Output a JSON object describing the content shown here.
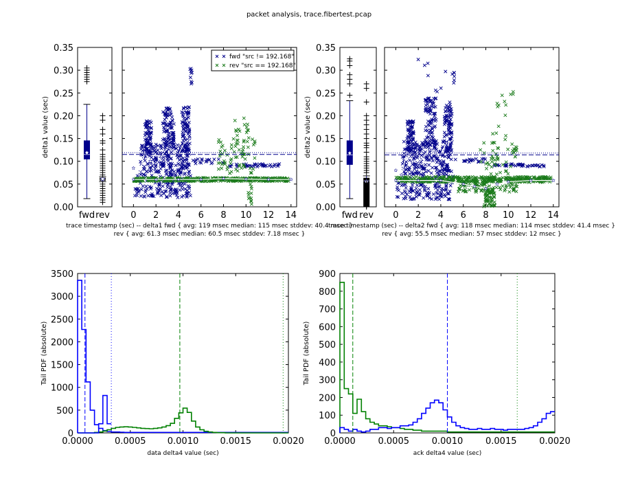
{
  "suptitle": "packet analysis, trace.fibertest.pcap",
  "colors": {
    "fwd": "#00008b",
    "rev": "#1a7a1a",
    "blue": "#0000ff",
    "green": "#008000",
    "white": "#ffffff"
  },
  "chart_data": [
    {
      "id": "p1-box",
      "type": "boxplot",
      "ylabel": "delta1 value (sec)",
      "ylim": [
        0,
        0.35
      ],
      "yticks": [
        "0.00",
        "0.05",
        "0.10",
        "0.15",
        "0.20",
        "0.25",
        "0.30",
        "0.35"
      ],
      "categories": [
        "fwd",
        "rev"
      ],
      "boxes": [
        {
          "name": "fwd",
          "q1": 0.105,
          "median": 0.115,
          "q3": 0.145,
          "whisker_low": 0.018,
          "whisker_high": 0.225,
          "mean": 0.119,
          "fliers": [
            0.275,
            0.28,
            0.285,
            0.29,
            0.295,
            0.3,
            0.305
          ]
        },
        {
          "name": "rev",
          "q1": 0.058,
          "median": 0.0605,
          "q3": 0.063,
          "whisker_low": 0.055,
          "whisker_high": 0.066,
          "mean": 0.0613,
          "fliers": [
            0.01,
            0.015,
            0.02,
            0.025,
            0.03,
            0.035,
            0.04,
            0.045,
            0.05,
            0.07,
            0.075,
            0.08,
            0.085,
            0.09,
            0.095,
            0.1,
            0.105,
            0.11,
            0.115,
            0.125,
            0.14,
            0.145,
            0.16,
            0.17,
            0.19,
            0.2
          ]
        }
      ]
    },
    {
      "id": "p1-scatter",
      "type": "scatter",
      "xlim": [
        -1,
        14.5
      ],
      "ylim": [
        0,
        0.35
      ],
      "xticks": [
        "0",
        "2",
        "4",
        "6",
        "8",
        "10",
        "12",
        "14"
      ],
      "xlabel_line1": "trace timestamp (sec) -- delta1 fwd { avg: 119 msec median: 115 msec stddev: 40.4 msec }",
      "xlabel_line2": "rev { avg: 61.3 msec median: 60.5 msec stddev: 7.18 msec }",
      "legend": [
        "fwd \"src != 192.168\"",
        "rev \"src == 192.168\""
      ],
      "fwd_avg": 0.119,
      "fwd_median": 0.115,
      "series": [
        {
          "name": "fwd",
          "clusters": [
            {
              "x0": 0.1,
              "x1": 5.1,
              "y0": 0.02,
              "y1": 0.07,
              "n": 140
            },
            {
              "x0": 0.6,
              "x1": 5.0,
              "y0": 0.07,
              "y1": 0.14,
              "n": 220
            },
            {
              "x0": 1.0,
              "x1": 1.6,
              "y0": 0.12,
              "y1": 0.19,
              "n": 60
            },
            {
              "x0": 2.6,
              "x1": 3.6,
              "y0": 0.13,
              "y1": 0.22,
              "n": 90
            },
            {
              "x0": 4.3,
              "x1": 5.0,
              "y0": 0.12,
              "y1": 0.22,
              "n": 80
            },
            {
              "x0": 5.0,
              "x1": 5.2,
              "y0": 0.27,
              "y1": 0.305,
              "n": 10
            },
            {
              "x0": 5.3,
              "x1": 8.0,
              "y0": 0.095,
              "y1": 0.105,
              "n": 20
            },
            {
              "x0": 8.5,
              "x1": 13.0,
              "y0": 0.088,
              "y1": 0.095,
              "n": 40
            }
          ],
          "trend": [
            [
              0.0,
              0.085
            ],
            [
              0.5,
              0.07
            ],
            [
              1.0,
              0.12
            ],
            [
              1.5,
              0.1
            ],
            [
              2.0,
              0.095
            ],
            [
              2.5,
              0.11
            ],
            [
              3.0,
              0.13
            ],
            [
              3.5,
              0.125
            ],
            [
              4.0,
              0.115
            ],
            [
              4.5,
              0.14
            ],
            [
              5.0,
              0.15
            ]
          ]
        },
        {
          "name": "rev",
          "clusters": [
            {
              "x0": 0.0,
              "x1": 13.8,
              "y0": 0.056,
              "y1": 0.064,
              "n": 420
            },
            {
              "x0": 7.5,
              "x1": 10.8,
              "y0": 0.07,
              "y1": 0.15,
              "n": 70
            },
            {
              "x0": 9.0,
              "x1": 10.3,
              "y0": 0.15,
              "y1": 0.2,
              "n": 14
            },
            {
              "x0": 10.2,
              "x1": 10.5,
              "y0": 0.005,
              "y1": 0.05,
              "n": 12
            }
          ],
          "trend": [
            [
              0.0,
              0.06
            ],
            [
              2.0,
              0.06
            ],
            [
              4.0,
              0.06
            ],
            [
              6.0,
              0.06
            ],
            [
              8.0,
              0.062
            ],
            [
              10.0,
              0.061
            ],
            [
              12.0,
              0.06
            ],
            [
              14.0,
              0.06
            ]
          ]
        }
      ]
    },
    {
      "id": "p2-box",
      "type": "boxplot",
      "ylabel": "delta2 value (sec)",
      "ylim": [
        0,
        0.35
      ],
      "yticks": [
        "0.00",
        "0.05",
        "0.10",
        "0.15",
        "0.20",
        "0.25",
        "0.30",
        "0.35"
      ],
      "categories": [
        "fwd",
        "rev"
      ],
      "boxes": [
        {
          "name": "fwd",
          "q1": 0.093,
          "median": 0.114,
          "q3": 0.145,
          "whisker_low": 0.018,
          "whisker_high": 0.233,
          "mean": 0.118,
          "fliers": [
            0.245,
            0.27,
            0.28,
            0.29,
            0.31,
            0.32,
            0.325
          ]
        },
        {
          "name": "rev",
          "q1": 0.0,
          "median": 0.057,
          "q3": 0.063,
          "whisker_low": 0.0,
          "whisker_high": 0.068,
          "mean": 0.0555,
          "fliers": [
            0.0,
            0.002,
            0.004,
            0.006,
            0.008,
            0.01,
            0.012,
            0.014,
            0.016,
            0.018,
            0.02,
            0.022,
            0.024,
            0.026,
            0.028,
            0.03,
            0.032,
            0.034,
            0.036,
            0.038,
            0.04,
            0.042,
            0.044,
            0.046,
            0.048,
            0.05,
            0.052,
            0.075,
            0.08,
            0.085,
            0.09,
            0.095,
            0.1,
            0.105,
            0.11,
            0.12,
            0.13,
            0.135,
            0.14,
            0.15,
            0.16,
            0.17,
            0.18,
            0.19,
            0.2,
            0.23,
            0.26,
            0.27
          ]
        }
      ]
    },
    {
      "id": "p2-scatter",
      "type": "scatter",
      "xlim": [
        -1,
        14.5
      ],
      "ylim": [
        0,
        0.35
      ],
      "xticks": [
        "0",
        "2",
        "4",
        "6",
        "8",
        "10",
        "12",
        "14"
      ],
      "xlabel_line1": "trace timestamp (sec) -- delta2 fwd { avg: 118 msec median: 114 msec stddev: 41.4 msec }",
      "xlabel_line2": "rev { avg: 55.5 msec median: 57 msec stddev: 12 msec }",
      "fwd_avg": 0.118,
      "fwd_median": 0.114,
      "series": [
        {
          "name": "fwd",
          "clusters": [
            {
              "x0": 0.1,
              "x1": 5.1,
              "y0": 0.015,
              "y1": 0.07,
              "n": 140
            },
            {
              "x0": 0.6,
              "x1": 5.0,
              "y0": 0.07,
              "y1": 0.145,
              "n": 220
            },
            {
              "x0": 1.0,
              "x1": 1.6,
              "y0": 0.12,
              "y1": 0.19,
              "n": 60
            },
            {
              "x0": 2.6,
              "x1": 3.6,
              "y0": 0.13,
              "y1": 0.24,
              "n": 90
            },
            {
              "x0": 4.3,
              "x1": 5.0,
              "y0": 0.12,
              "y1": 0.23,
              "n": 80
            },
            {
              "x0": 1.8,
              "x1": 4.5,
              "y0": 0.25,
              "y1": 0.325,
              "n": 8
            },
            {
              "x0": 5.0,
              "x1": 5.2,
              "y0": 0.27,
              "y1": 0.295,
              "n": 6
            },
            {
              "x0": 5.3,
              "x1": 8.0,
              "y0": 0.098,
              "y1": 0.106,
              "n": 20
            },
            {
              "x0": 8.5,
              "x1": 13.2,
              "y0": 0.088,
              "y1": 0.094,
              "n": 40
            }
          ],
          "trend": [
            [
              0.0,
              0.08
            ],
            [
              0.5,
              0.07
            ],
            [
              1.0,
              0.12
            ],
            [
              1.5,
              0.1
            ],
            [
              2.0,
              0.095
            ],
            [
              2.5,
              0.11
            ],
            [
              3.0,
              0.125
            ],
            [
              3.5,
              0.12
            ],
            [
              4.0,
              0.115
            ],
            [
              4.5,
              0.14
            ],
            [
              5.0,
              0.145
            ]
          ]
        },
        {
          "name": "rev",
          "clusters": [
            {
              "x0": 0.0,
              "x1": 13.8,
              "y0": 0.054,
              "y1": 0.066,
              "n": 420
            },
            {
              "x0": 5.5,
              "x1": 10.8,
              "y0": 0.03,
              "y1": 0.055,
              "n": 80
            },
            {
              "x0": 7.8,
              "x1": 8.8,
              "y0": 0.0,
              "y1": 0.04,
              "n": 60
            },
            {
              "x0": 7.5,
              "x1": 10.8,
              "y0": 0.07,
              "y1": 0.15,
              "n": 50
            },
            {
              "x0": 8.5,
              "x1": 10.5,
              "y0": 0.15,
              "y1": 0.27,
              "n": 14
            }
          ],
          "trend": [
            [
              0.0,
              0.058
            ],
            [
              2.0,
              0.058
            ],
            [
              4.0,
              0.058
            ],
            [
              6.0,
              0.05
            ],
            [
              7.0,
              0.045
            ],
            [
              8.0,
              0.04
            ],
            [
              9.0,
              0.05
            ],
            [
              10.0,
              0.055
            ],
            [
              12.0,
              0.058
            ],
            [
              14.0,
              0.058
            ]
          ]
        }
      ]
    },
    {
      "id": "p3-hist",
      "type": "step",
      "xlabel": "data delta4 value (sec)",
      "ylabel": "Tail PDF (absolute)",
      "xlim": [
        0,
        0.002
      ],
      "ylim": [
        0,
        3500
      ],
      "xticks": [
        "0.0000",
        "0.0005",
        "0.0010",
        "0.0015",
        "0.0020"
      ],
      "yticks": [
        "0",
        "500",
        "1000",
        "1500",
        "2000",
        "2500",
        "3000",
        "3500"
      ],
      "bin_width": 4e-05,
      "series": [
        {
          "name": "blue",
          "values": [
            3350,
            2270,
            1120,
            500,
            180,
            100,
            50,
            30,
            20,
            20,
            15,
            10,
            10,
            10,
            10,
            10,
            10,
            10,
            10,
            10,
            10,
            10,
            10,
            10,
            10,
            10,
            10,
            10,
            10,
            10,
            10,
            10,
            10,
            10,
            10,
            10,
            10,
            10,
            10,
            10,
            10,
            10,
            10,
            10,
            10,
            10,
            10,
            10,
            10,
            10
          ]
        },
        {
          "name": "green",
          "values": [
            0,
            0,
            0,
            0,
            10,
            20,
            40,
            70,
            100,
            120,
            130,
            135,
            130,
            120,
            110,
            100,
            95,
            90,
            100,
            110,
            130,
            160,
            210,
            320,
            440,
            545,
            450,
            260,
            130,
            70,
            35,
            20,
            10,
            5,
            5,
            0,
            0,
            0,
            0,
            0,
            0,
            0,
            0,
            0,
            0,
            0,
            0,
            0,
            0,
            0
          ]
        },
        {
          "name": "blue2",
          "values": [
            0,
            0,
            0,
            0,
            0,
            200,
            820,
            200
          ]
        }
      ],
      "vlines": [
        {
          "x": 7e-05,
          "color": "blue",
          "style": "dashed"
        },
        {
          "x": 0.00032,
          "color": "blue",
          "style": "dotted"
        },
        {
          "x": 0.00097,
          "color": "green",
          "style": "dashed"
        },
        {
          "x": 0.00195,
          "color": "green",
          "style": "dotted"
        }
      ]
    },
    {
      "id": "p4-hist",
      "type": "step",
      "xlabel": "ack delta4 value (sec)",
      "ylabel": "Tail PDF (absolute)",
      "xlim": [
        0,
        0.002
      ],
      "ylim": [
        0,
        900
      ],
      "xticks": [
        "0.0000",
        "0.0005",
        "0.0010",
        "0.0015",
        "0.0020"
      ],
      "yticks": [
        "0",
        "100",
        "200",
        "300",
        "400",
        "500",
        "600",
        "700",
        "800",
        "900"
      ],
      "bin_width": 4e-05,
      "series": [
        {
          "name": "green",
          "values": [
            850,
            250,
            220,
            110,
            190,
            120,
            80,
            60,
            50,
            40,
            40,
            35,
            30,
            30,
            25,
            20,
            20,
            15,
            15,
            10,
            10,
            10,
            10,
            10,
            10,
            5,
            5,
            5,
            5,
            5,
            5,
            5,
            5,
            5,
            5,
            5,
            5,
            5,
            5,
            5,
            5,
            5,
            5,
            5,
            5,
            5,
            5,
            5,
            5,
            5
          ]
        },
        {
          "name": "blue",
          "values": [
            30,
            20,
            10,
            20,
            10,
            5,
            10,
            20,
            20,
            30,
            30,
            25,
            30,
            30,
            40,
            40,
            45,
            60,
            80,
            110,
            140,
            170,
            185,
            170,
            130,
            90,
            60,
            40,
            30,
            25,
            20,
            20,
            25,
            20,
            20,
            25,
            20,
            20,
            15,
            20,
            20,
            20,
            20,
            25,
            30,
            40,
            60,
            80,
            110,
            120
          ]
        }
      ],
      "vlines": [
        {
          "x": 0.00012,
          "color": "green",
          "style": "dashed"
        },
        {
          "x": 0.001,
          "color": "blue",
          "style": "dashed"
        },
        {
          "x": 0.00165,
          "color": "green",
          "style": "dotted"
        }
      ]
    }
  ]
}
